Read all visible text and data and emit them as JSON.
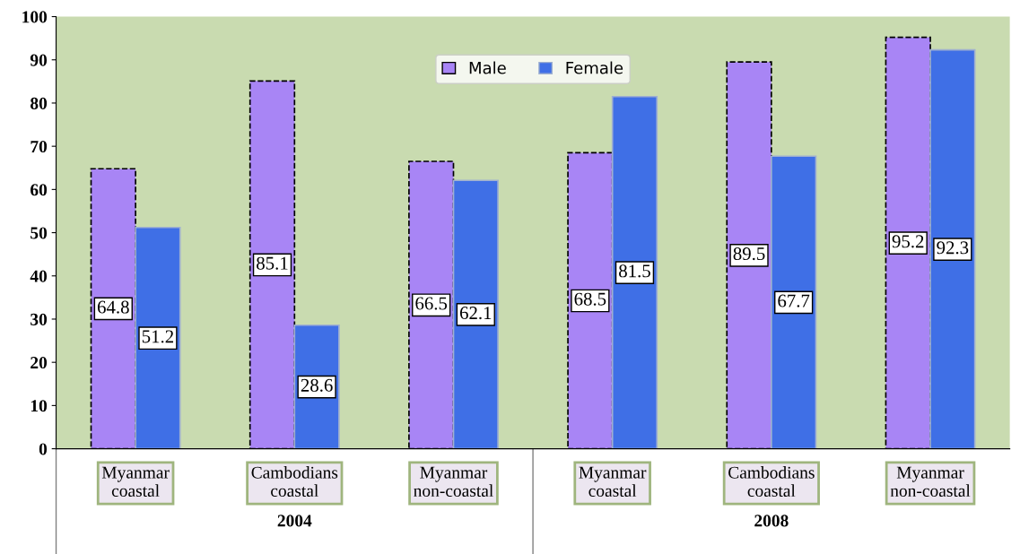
{
  "chart_data": {
    "type": "bar",
    "categories": [
      "Myanmar\ncoastal",
      "Cambodians\ncoastal",
      "Myanmar\nnon-coastal",
      "Myanmar\ncoastal",
      "Cambodians\ncoastal",
      "Myanmar\nnon-coastal"
    ],
    "series": [
      {
        "name": "Male",
        "color": "#a885f5",
        "values": [
          64.8,
          85.1,
          66.5,
          68.5,
          89.5,
          95.2
        ]
      },
      {
        "name": "Female",
        "color": "#3f6fe6",
        "values": [
          51.2,
          28.6,
          62.1,
          81.5,
          67.7,
          92.3
        ]
      }
    ],
    "annotations": [
      "2004",
      "2008"
    ],
    "ylim": [
      0,
      100
    ],
    "yticks": [
      0,
      10,
      20,
      30,
      40,
      50,
      60,
      70,
      80,
      90,
      100
    ],
    "data_labels": true,
    "grid": false,
    "legend": "top"
  }
}
